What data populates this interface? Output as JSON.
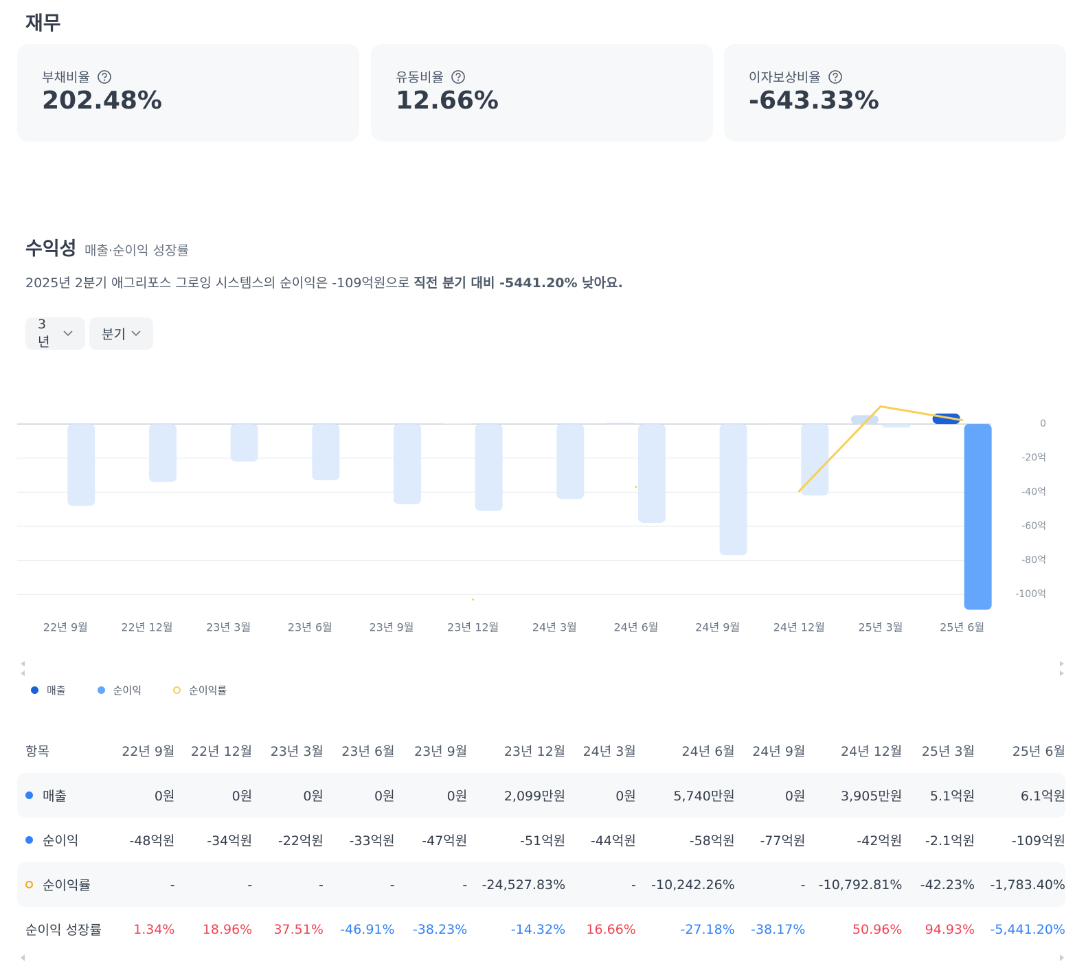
{
  "header": {
    "title": "재무"
  },
  "cards": [
    {
      "label": "부채비율",
      "value": "202.48%"
    },
    {
      "label": "유동비율",
      "value": "12.66%"
    },
    {
      "label": "이자보상비율",
      "value": "-643.33%"
    }
  ],
  "section": {
    "title": "수익성",
    "subtitle": "매출·순이익 성장률",
    "summary": "2025년 2분기 애그리포스 그로잉 시스템스의 순이익은 -109억원으로 ",
    "summary_bold": "직전 분기 대비 -5441.20% 낮아요."
  },
  "filters": [
    "3년",
    "분기"
  ],
  "chart_data": {
    "type": "combo",
    "categories": [
      "22년 9월",
      "22년 12월",
      "23년 3월",
      "23년 6월",
      "23년 9월",
      "23년 12월",
      "24년 3월",
      "24년 6월",
      "24년 9월",
      "24년 12월",
      "25년 3월",
      "25년 6월"
    ],
    "selected_category": "25년 6월",
    "series": [
      {
        "name": "매출",
        "kind": "bar",
        "color": "#1b5fd9",
        "muted_color": "#cfdff6",
        "values": [
          0,
          0,
          0,
          0,
          0,
          0.2099,
          0,
          0.574,
          0,
          0.3905,
          5.1,
          6.1
        ]
      },
      {
        "name": "순이익",
        "kind": "bar",
        "color": "#64a6fb",
        "muted_color": "#deebfc",
        "values": [
          -48,
          -34,
          -22,
          -33,
          -47,
          -51,
          -44,
          -58,
          -77,
          -42,
          -2.1,
          -109
        ]
      },
      {
        "name": "순이익률",
        "kind": "line",
        "axis": "y2",
        "color": "#f8cf59",
        "values": [
          null,
          null,
          null,
          null,
          null,
          -24527.83,
          null,
          -10242.26,
          null,
          -10792.81,
          -42.23,
          -1783.4
        ]
      }
    ],
    "ylim": [
      -110,
      23
    ],
    "yticks": [
      0,
      {
        "value": -20,
        "label": "-20억"
      },
      {
        "value": -40,
        "label": "-40억"
      },
      {
        "value": -60,
        "label": "-60억"
      },
      {
        "value": -80,
        "label": "-80억"
      },
      {
        "value": -100,
        "label": "-100억"
      }
    ],
    "y2lim": [
      -26045,
      2700
    ],
    "grid": true
  },
  "table": {
    "header": [
      "항목",
      "22년 9월",
      "22년 12월",
      "23년 3월",
      "23년 6월",
      "23년 9월",
      "23년 12월",
      "24년 3월",
      "24년 6월",
      "24년 9월",
      "24년 12월",
      "25년 3월",
      "25년 6월"
    ],
    "rows": [
      {
        "label": "매출",
        "cells": [
          "0원",
          "0원",
          "0원",
          "0원",
          "0원",
          "2,099만원",
          "0원",
          "5,740만원",
          "0원",
          "3,905만원",
          "5.1억원",
          "6.1억원"
        ]
      },
      {
        "label": "순이익",
        "cells": [
          "-48억원",
          "-34억원",
          "-22억원",
          "-33억원",
          "-47억원",
          "-51억원",
          "-44억원",
          "-58억원",
          "-77억원",
          "-42억원",
          "-2.1억원",
          "-109억원"
        ]
      },
      {
        "label": "순이익률",
        "cells": [
          "-",
          "-",
          "-",
          "-",
          "-",
          "-24,527.83%",
          "-",
          "-10,242.26%",
          "-",
          "-10,792.81%",
          "-42.23%",
          "-1,783.40%"
        ]
      },
      {
        "label": "순이익 성장률",
        "cells": [
          "1.34%",
          "18.96%",
          "37.51%",
          "-46.91%",
          "-38.23%",
          "-14.32%",
          "16.66%",
          "-27.18%",
          "-38.17%",
          "50.96%",
          "94.93%",
          "-5,441.20%"
        ]
      }
    ]
  }
}
